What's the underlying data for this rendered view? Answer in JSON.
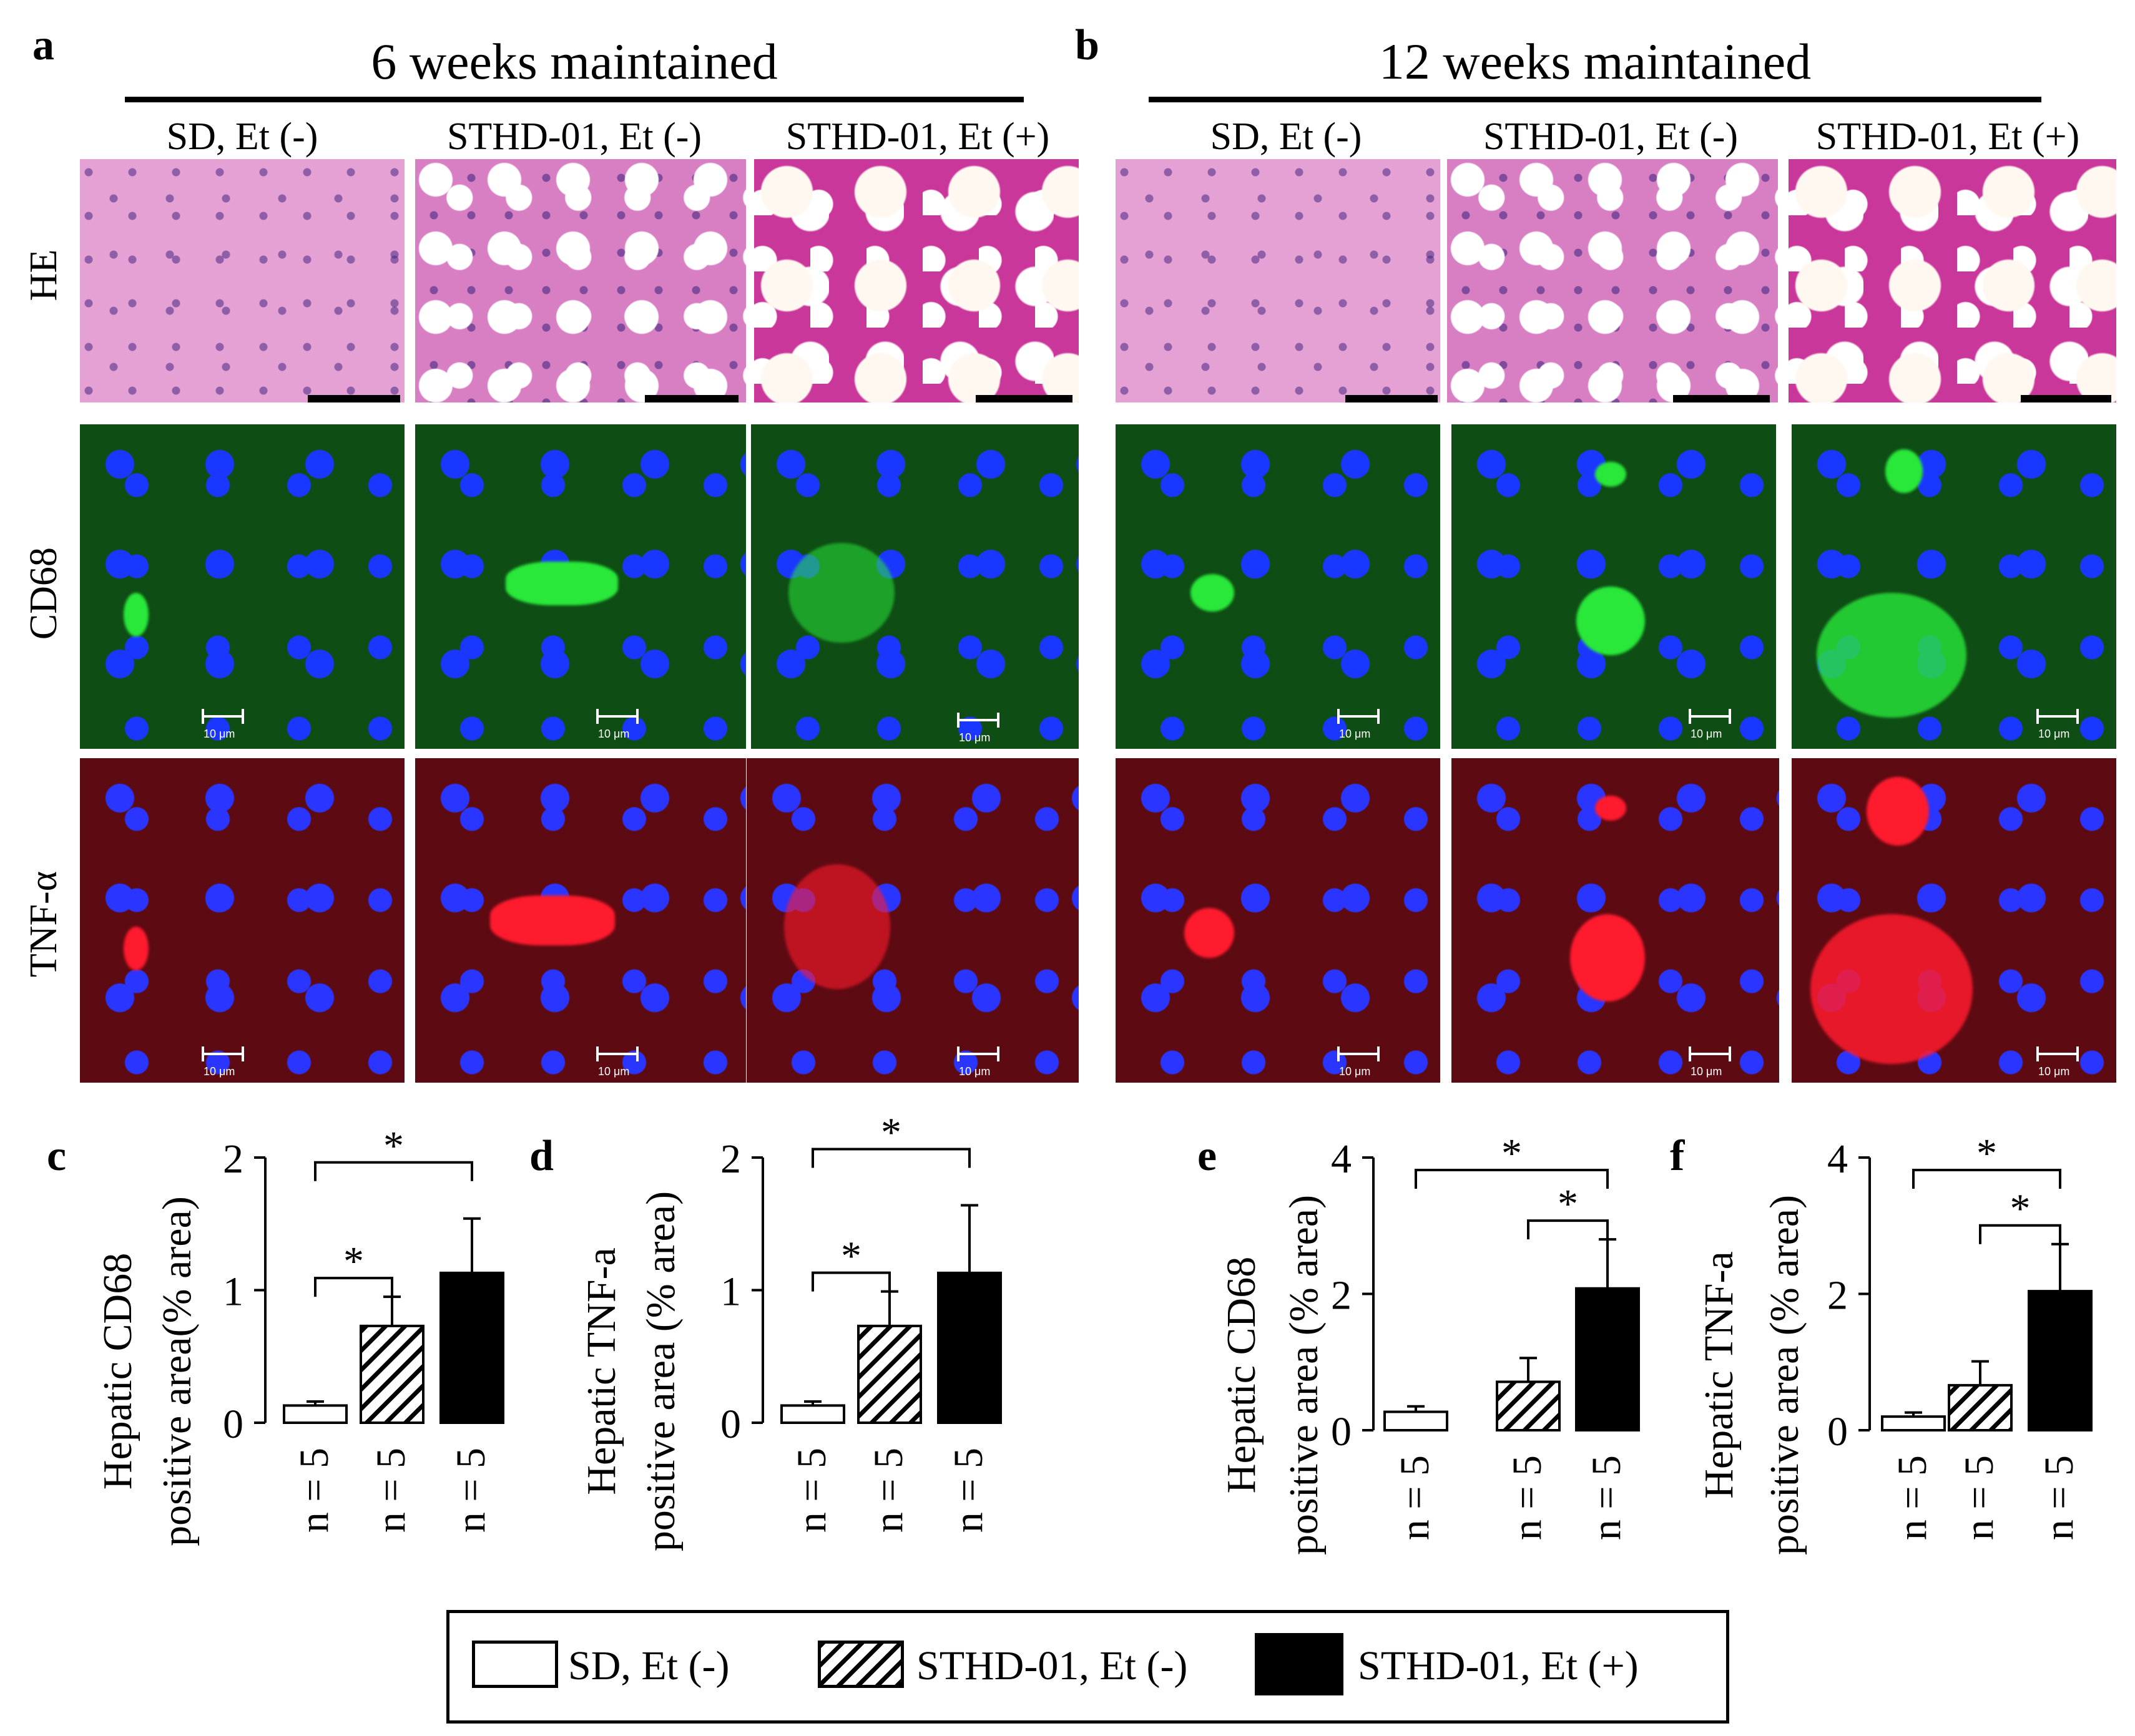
{
  "figure": {
    "panel_a": {
      "letter": "a",
      "title": "6 weeks maintained",
      "columns": [
        "SD, Et (-)",
        "STHD-01, Et (-)",
        "STHD-01, Et (+)"
      ]
    },
    "panel_b": {
      "letter": "b",
      "title": "12 weeks maintained",
      "columns": [
        "SD, Et (-)",
        "STHD-01, Et (-)",
        "STHD-01, Et (+)"
      ]
    },
    "rows": [
      "HE",
      "CD68",
      "TNF-α"
    ],
    "scale_label": "10 μm"
  },
  "legend": {
    "items": [
      {
        "label": "SD, Et (-)",
        "style": "white"
      },
      {
        "label": "STHD-01, Et (-)",
        "style": "hatched"
      },
      {
        "label": "STHD-01, Et (+)",
        "style": "black"
      }
    ]
  },
  "colors": {
    "bar_white": "#ffffff",
    "bar_black": "#000000",
    "stroke": "#000000"
  },
  "chart_data": [
    {
      "panel": "c",
      "type": "bar",
      "ylabel_line1": "Hepatic CD68",
      "ylabel_line2": "positive area(% area)",
      "ylim": [
        0,
        2
      ],
      "yticks": [
        "0",
        "1",
        "2"
      ],
      "categories": [
        "SD, Et (-)",
        "STHD-01, Et (-)",
        "STHD-01, Et (+)"
      ],
      "values": [
        0.13,
        0.73,
        1.13
      ],
      "errors": [
        0.03,
        0.22,
        0.41
      ],
      "n_labels": [
        "n = 5",
        "n = 5",
        "n = 5"
      ],
      "significance": [
        {
          "from": 1,
          "to": 2,
          "label": "*"
        },
        {
          "from": 1,
          "to": 3,
          "label": "*"
        }
      ]
    },
    {
      "panel": "d",
      "type": "bar",
      "ylabel_line1": "Hepatic TNF-a",
      "ylabel_line2": "positive area (% area)",
      "ylim": [
        0,
        2
      ],
      "yticks": [
        "0",
        "1",
        "2"
      ],
      "categories": [
        "SD, Et (-)",
        "STHD-01, Et (-)",
        "STHD-01, Et (+)"
      ],
      "values": [
        0.13,
        0.73,
        1.13
      ],
      "errors": [
        0.03,
        0.26,
        0.51
      ],
      "n_labels": [
        "n = 5",
        "n = 5",
        "n = 5"
      ],
      "significance": [
        {
          "from": 1,
          "to": 2,
          "label": "*"
        },
        {
          "from": 1,
          "to": 3,
          "label": "*"
        }
      ]
    },
    {
      "panel": "e",
      "type": "bar",
      "ylabel_line1": "Hepatic CD68",
      "ylabel_line2": "positive area (% area)",
      "ylim": [
        0,
        4
      ],
      "yticks": [
        "0",
        "2",
        "4"
      ],
      "categories": [
        "SD, Et (-)",
        "STHD-01, Et (-)",
        "STHD-01, Et (+)"
      ],
      "values": [
        0.27,
        0.71,
        2.08
      ],
      "errors": [
        0.08,
        0.35,
        0.72
      ],
      "n_labels": [
        "n = 5",
        "n = 5",
        "n = 5"
      ],
      "significance": [
        {
          "from": 2,
          "to": 3,
          "label": "*"
        },
        {
          "from": 1,
          "to": 3,
          "label": "*"
        }
      ]
    },
    {
      "panel": "f",
      "type": "bar",
      "ylabel_line1": "Hepatic TNF-a",
      "ylabel_line2": "positive area (% area)",
      "ylim": [
        0,
        4
      ],
      "yticks": [
        "0",
        "2",
        "4"
      ],
      "categories": [
        "SD, Et (-)",
        "STHD-01, Et (-)",
        "STHD-01, Et (+)"
      ],
      "values": [
        0.2,
        0.66,
        2.04
      ],
      "errors": [
        0.06,
        0.35,
        0.69
      ],
      "n_labels": [
        "n = 5",
        "n = 5",
        "n = 5"
      ],
      "significance": [
        {
          "from": 2,
          "to": 3,
          "label": "*"
        },
        {
          "from": 1,
          "to": 3,
          "label": "*"
        }
      ]
    }
  ]
}
